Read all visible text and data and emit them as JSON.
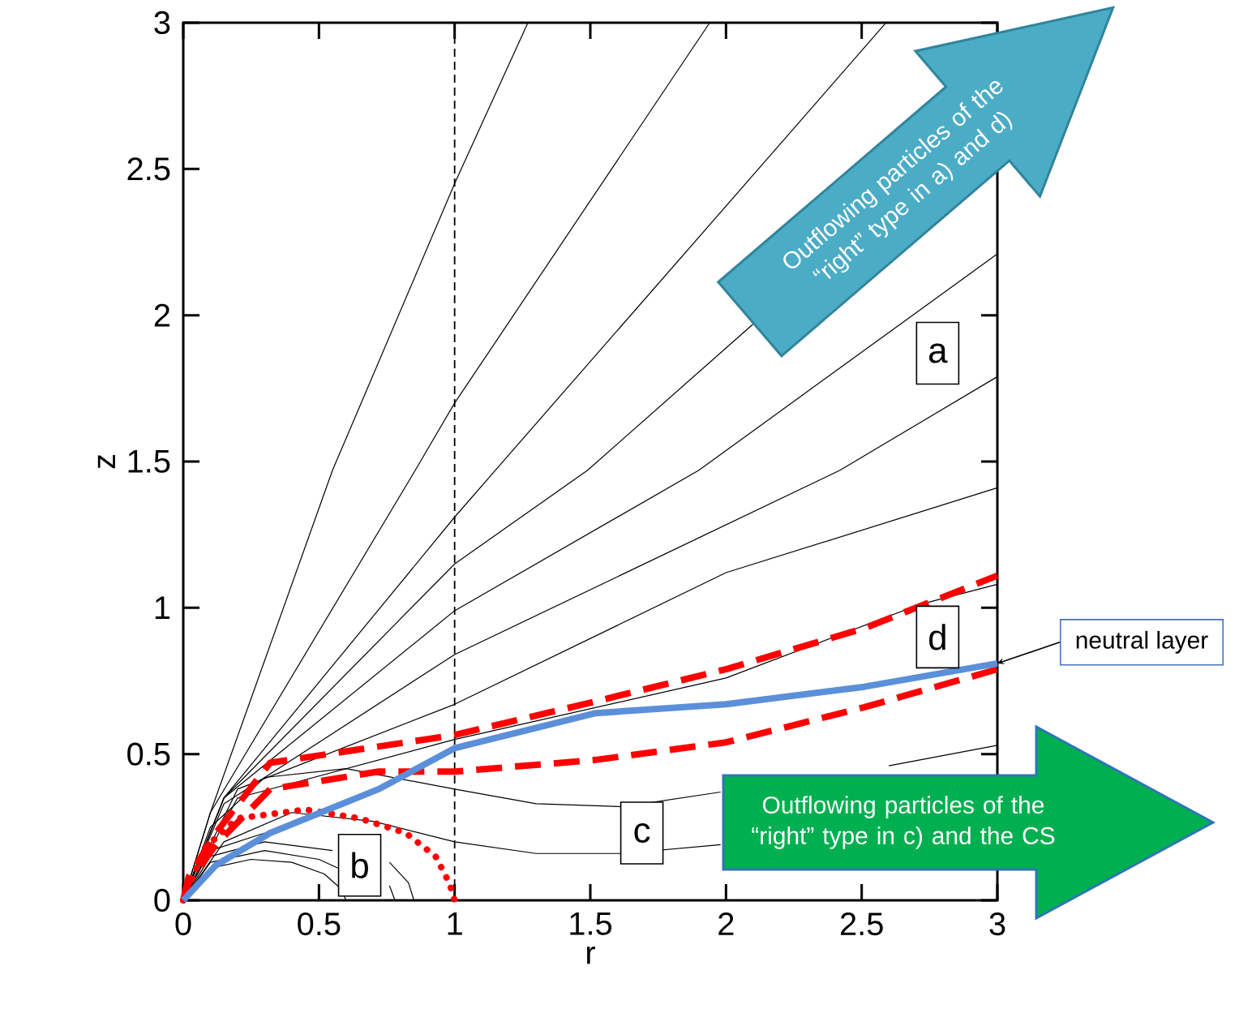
{
  "chart_data": {
    "type": "line",
    "xlabel": "r",
    "ylabel": "z",
    "xlim": [
      0,
      3
    ],
    "ylim": [
      0,
      3
    ],
    "xticks": [
      0,
      0.5,
      1,
      1.5,
      2,
      2.5,
      3
    ],
    "yticks": [
      0,
      0.5,
      1,
      1.5,
      2,
      2.5,
      3
    ],
    "color": "#000000",
    "ref_lines": [
      {
        "axis": "x",
        "value": 1,
        "color": "#000000",
        "line_style": "dashed"
      }
    ],
    "annotations": [
      "Outflowing particles of the “right” type in a) and d)",
      "Outflowing particles of the “right” type in c) and the CS",
      {
        "text": "a",
        "x": 2.78,
        "y": 1.87
      },
      {
        "text": "b",
        "x": 0.65,
        "y": 0.12
      },
      {
        "text": "c",
        "x": 1.69,
        "y": 0.23
      },
      {
        "text": "d",
        "x": 2.78,
        "y": 0.9
      },
      {
        "text": "neutral layer",
        "x": 3,
        "y": 0.81
      }
    ],
    "series": [
      {
        "x": [
          0,
          0.1,
          0.55,
          1,
          1.27
        ],
        "values": [
          0,
          0.3,
          1.47,
          2.45,
          3
        ]
      },
      {
        "x": [
          0,
          0.1,
          0.855,
          1,
          1.94
        ],
        "values": [
          0,
          0.3,
          1.47,
          1.7,
          3
        ]
      },
      {
        "x": [
          0,
          0.15,
          1,
          1.15,
          2.59
        ],
        "values": [
          0,
          0.35,
          1.31,
          1.47,
          3
        ]
      },
      {
        "x": [
          0,
          0.15,
          1,
          1.49,
          2.1
        ],
        "values": [
          0,
          0.35,
          1.15,
          1.47,
          1.97
        ]
      },
      {
        "x": [
          0,
          0.15,
          1,
          1.9,
          3
        ],
        "values": [
          0,
          0.35,
          0.99,
          1.47,
          2.21
        ]
      },
      {
        "x": [
          0,
          0.15,
          1,
          2.42,
          3
        ],
        "values": [
          0,
          0.33,
          0.84,
          1.47,
          1.79
        ]
      },
      {
        "x": [
          0,
          0.2,
          1,
          2,
          3
        ],
        "values": [
          0,
          0.38,
          0.67,
          1.12,
          1.41
        ]
      },
      {
        "x": [
          0,
          0.2,
          1,
          2,
          2.71,
          3
        ],
        "values": [
          0,
          0.35,
          0.55,
          0.76,
          1.01,
          1.08
        ]
      },
      {
        "x": [
          0,
          0.1,
          0.3,
          0.6,
          1,
          1.3,
          1.62,
          1.98,
          2.3,
          2.6,
          3
        ],
        "values": [
          0,
          0.25,
          0.42,
          0.45,
          0.38,
          0.33,
          0.32,
          0.37,
          null,
          0.46,
          0.53
        ]
      },
      {
        "x": [
          0,
          0.15,
          0.4,
          0.7,
          1,
          1.3,
          1.62,
          1.98
        ],
        "values": [
          0,
          0.2,
          0.3,
          0.27,
          0.2,
          0.16,
          0.16,
          0.19
        ]
      },
      {
        "x": [
          0,
          0.1,
          0.25,
          0.4,
          0.52,
          0.58,
          0.6
        ],
        "values": [
          0,
          0.11,
          0.14,
          0.13,
          0.09,
          0.04,
          0
        ]
      },
      {
        "x": [
          0,
          0.1,
          0.3,
          0.5,
          0.57
        ],
        "values": [
          0,
          0.13,
          0.17,
          0.14,
          0.11
        ]
      },
      {
        "x": [
          0,
          0.1,
          0.3,
          0.55,
          0.7,
          0.76,
          0.78
        ],
        "values": [
          0,
          0.15,
          0.2,
          0.17,
          null,
          0.05,
          0
        ]
      },
      {
        "x": [
          0,
          0.1,
          0.3,
          0.6,
          0.76,
          0.83,
          0.85
        ],
        "values": [
          0,
          0.17,
          0.23,
          null,
          0.13,
          0.06,
          0
        ]
      },
      {
        "x": [
          0,
          0.08,
          0.2,
          0.45,
          0.65,
          0.82,
          0.93,
          0.98,
          1
        ],
        "values": [
          0,
          0.18,
          0.28,
          0.31,
          0.28,
          0.23,
          0.15,
          0.06,
          0
        ],
        "color": "#ff0000",
        "line_style": "dotted"
      },
      {
        "x": [
          0,
          0.02,
          0.12,
          0.32,
          0.72,
          1,
          1.52,
          2,
          2.51,
          3
        ],
        "values": [
          0,
          0.06,
          0.19,
          0.38,
          0.44,
          0.44,
          0.48,
          0.54,
          0.66,
          0.79
        ],
        "color": "#ff0000",
        "line_style": "dashed"
      },
      {
        "x": [
          0,
          0.02,
          0.12,
          0.32,
          1,
          1.52,
          2,
          2.51,
          3
        ],
        "values": [
          0,
          0.08,
          0.23,
          0.47,
          0.565,
          0.68,
          0.79,
          0.93,
          1.11
        ],
        "color": "#ff0000",
        "line_style": "dashed"
      },
      {
        "x": [
          0,
          0.12,
          0.32,
          0.72,
          1,
          1.52,
          2,
          2.51,
          3
        ],
        "values": [
          0,
          0.12,
          0.23,
          0.38,
          0.52,
          0.64,
          0.67,
          0.73,
          0.81
        ],
        "color": "#5b8fd9"
      }
    ]
  }
}
